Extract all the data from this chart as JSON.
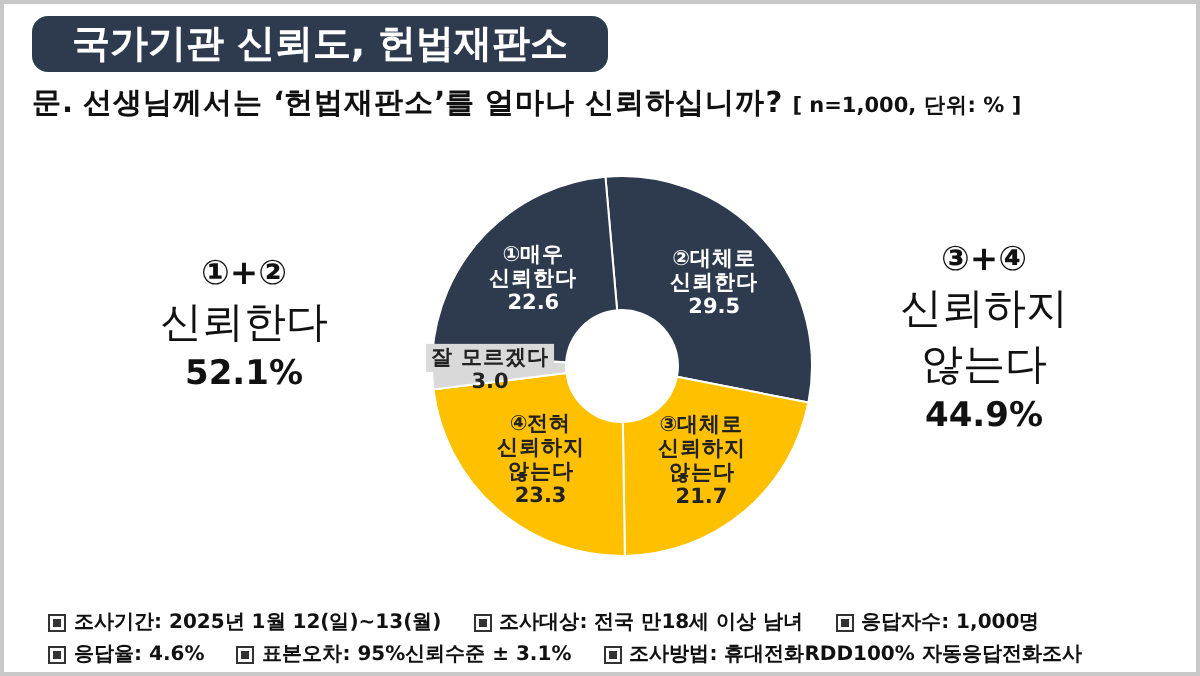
{
  "chart_data": {
    "type": "donut",
    "title": "국가기관 신뢰도, 헌법재판소",
    "subtitle": "문. 선생님께서는 ‘헌법재판소’를 얼마나 신뢰하십니까?",
    "categories": [
      "②대체로\n신뢰한다",
      "③대체로\n신뢰하지\n않는다",
      "④전혀\n신뢰하지\n않는다",
      "잘 모르겠다",
      "①매우\n신뢰한다"
    ],
    "values": [
      29.5,
      21.7,
      23.3,
      3.0,
      22.6
    ],
    "colors": [
      "#2e3a4e",
      "#ffc000",
      "#ffc000",
      "#d9d9d9",
      "#2e3a4e"
    ],
    "value_labels": [
      "29.5",
      "21.7",
      "23.3",
      "3.0",
      "22.6"
    ],
    "legend": false,
    "annotations": [
      "[ n=1,000, 단위: % ]",
      "①+②\n신뢰한다\n52.1%",
      "③+④\n신뢰하지\n않는다\n44.9%",
      "조사기간: 2025년 1월 12(일)~13(월)",
      "조사대상: 전국 만18세 이상 남녀",
      "응답자수: 1,000명",
      "응답율: 4.6%",
      "표본오차: 95%신뢰수준 ± 3.1%",
      "조사방법: 휴대전화RDD100% 자동응답전화조사"
    ]
  }
}
